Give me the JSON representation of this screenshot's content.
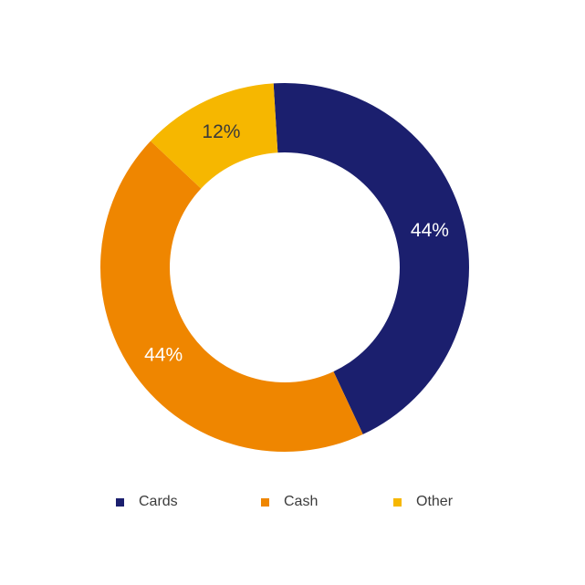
{
  "chart_data": {
    "type": "pie",
    "donut": true,
    "categories": [
      "Cards",
      "Cash",
      "Other"
    ],
    "values": [
      44,
      44,
      12
    ],
    "data_labels": [
      "44%",
      "44%",
      "12%"
    ],
    "colors": [
      "#1b1f6e",
      "#ef8600",
      "#f6b700"
    ],
    "label_colors": [
      "#ffffff",
      "#ffffff",
      "#3a3a3a"
    ],
    "legend_position": "bottom",
    "title": ""
  }
}
